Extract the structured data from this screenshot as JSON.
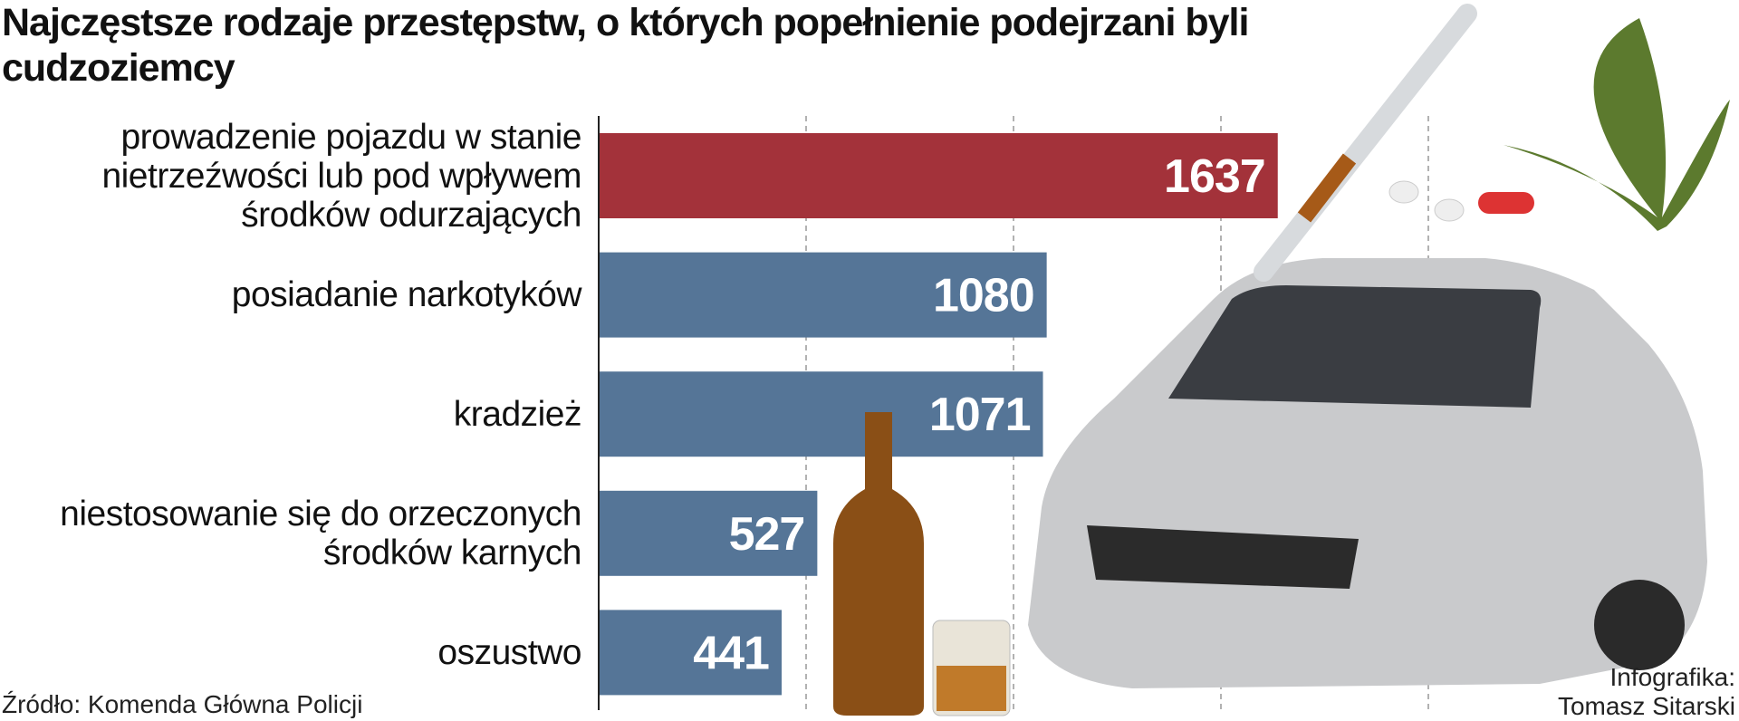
{
  "chart_data": {
    "type": "barh",
    "title": "Najczęstsze rodzaje przestępstw, o których popełnienie podejrzani byli cudzoziemcy",
    "categories": [
      "prowadzenie pojazdu w stanie nietrzeźwości lub pod wpływem środków odurzających",
      "posiadanie narkotyków",
      "kradzież",
      "niestosowanie się do orzeczonych środków karnych",
      "oszustwo"
    ],
    "values": [
      1637,
      1080,
      1071,
      527,
      441
    ],
    "colors": [
      "#a3323a",
      "#557597",
      "#557597",
      "#557597",
      "#557597"
    ],
    "xlim": [
      0,
      2000
    ],
    "xticks": [
      500,
      1000,
      1500,
      2000
    ],
    "grid": true,
    "source": "Źródło: Komenda Główna Policji",
    "credit": "Infografika: Tomasz Sitarski"
  }
}
